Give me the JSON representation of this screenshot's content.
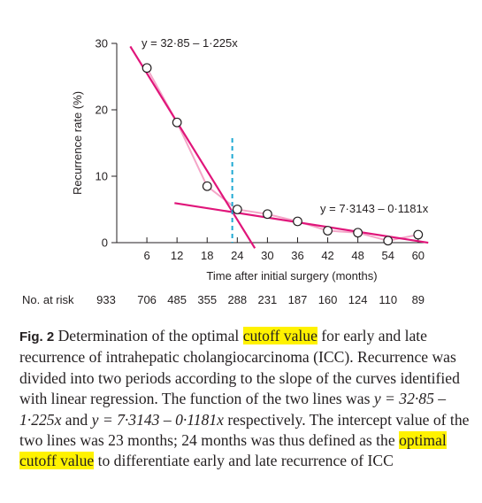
{
  "chart_data": {
    "type": "scatter",
    "x": [
      6,
      12,
      18,
      24,
      30,
      36,
      42,
      48,
      54,
      60
    ],
    "y": [
      26.3,
      18.1,
      8.5,
      5.0,
      4.3,
      3.2,
      1.8,
      1.5,
      0.3,
      1.2
    ],
    "xlabel": "Time after initial surgery (months)",
    "ylabel": "Recurrence rate (%)",
    "xlim": [
      0,
      62
    ],
    "ylim": [
      0,
      30
    ],
    "x_ticks": [
      "6",
      "12",
      "18",
      "24",
      "30",
      "36",
      "42",
      "48",
      "54",
      "60"
    ],
    "y_ticks": [
      "0",
      "10",
      "20",
      "30"
    ],
    "fit_lines": [
      {
        "equation": "y = 32·85 – 1·225x",
        "intercept": 32.85,
        "slope": -1.225,
        "x_range": [
          2.7,
          27.5
        ],
        "color": "#e0157a"
      },
      {
        "equation": "y = 7·3143 – 0·1181x",
        "intercept": 7.3143,
        "slope": -0.1181,
        "x_range": [
          11.5,
          62
        ],
        "color": "#e0157a"
      }
    ],
    "connecting_line_color": "#f4a6c8",
    "cutoff": {
      "x": 23,
      "color": "#1fa9d3"
    },
    "at_risk": {
      "label": "No. at risk",
      "values": [
        "933",
        "706",
        "485",
        "355",
        "288",
        "231",
        "187",
        "160",
        "124",
        "110",
        "89"
      ]
    }
  },
  "caption": {
    "fig_label": "Fig. 2",
    "t1": " Determination of the optimal ",
    "hl1": "cutoff value",
    "t2": " for early and late recurrence of intrahepatic cholangiocarcinoma (ICC). Recurrence was divided into two periods according to the slope of the curves identified with linear regression. The function of the two lines was ",
    "eq1": "y = 32·85 – 1·225x",
    "t3": " and ",
    "eq2": "y = 7·3143 – 0·1181x",
    "t4": " respectively. The intercept value of the two lines was 23 months; 24 months was thus defined as the ",
    "hl2": "optimal cutoff value",
    "t5": " to differentiate early and late recurrence of ICC"
  }
}
